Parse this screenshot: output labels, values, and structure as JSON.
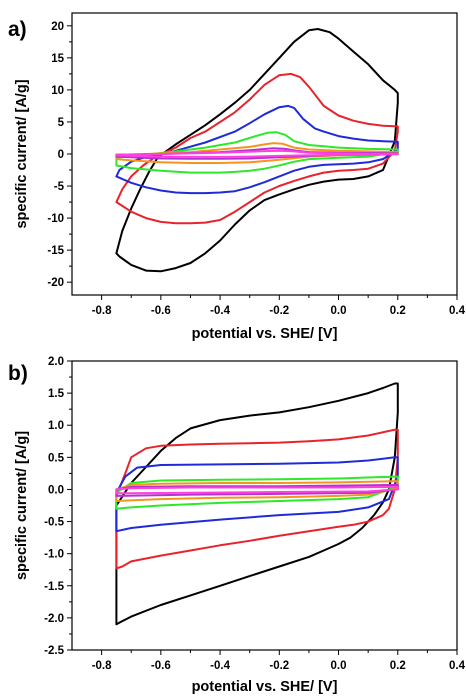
{
  "chart_data": [
    {
      "type": "line",
      "panel_label": "a)",
      "xlabel": "potential vs. SHE/ [V]",
      "ylabel": "specific current/ [A/g]",
      "xlim": [
        -0.9,
        0.4
      ],
      "ylim": [
        -22,
        22
      ],
      "xticks": [
        -0.8,
        -0.6,
        -0.4,
        -0.2,
        0.0,
        0.2,
        0.4
      ],
      "yticks": [
        -20,
        -15,
        -10,
        -5,
        0,
        5,
        10,
        15,
        20
      ],
      "xtick_labels": [
        "-0.8",
        "-0.6",
        "-0.4",
        "-0.2",
        "0.0",
        "0.2",
        "0.4"
      ],
      "ytick_labels": [
        "-20",
        "-15",
        "-10",
        "-5",
        "0",
        "5",
        "10",
        "15",
        "20"
      ],
      "grid": false,
      "series": [
        {
          "color": "#000000",
          "x": [
            -0.61,
            -0.55,
            -0.5,
            -0.45,
            -0.4,
            -0.35,
            -0.3,
            -0.25,
            -0.2,
            -0.15,
            -0.1,
            -0.07,
            -0.03,
            0.0,
            0.05,
            0.1,
            0.15,
            0.19,
            0.2,
            0.2,
            0.19,
            0.15,
            0.1,
            0.05,
            0.0,
            -0.05,
            -0.1,
            -0.15,
            -0.2,
            -0.25,
            -0.3,
            -0.35,
            -0.4,
            -0.45,
            -0.5,
            -0.55,
            -0.6,
            -0.65,
            -0.7,
            -0.74,
            -0.75,
            -0.73,
            -0.7,
            -0.67,
            -0.64,
            -0.61
          ],
          "y": [
            -0.5,
            1.5,
            3.0,
            4.5,
            6.2,
            8.0,
            10.0,
            12.5,
            15.0,
            17.5,
            19.3,
            19.5,
            19.0,
            18.0,
            16.0,
            14.0,
            11.5,
            10.0,
            9.5,
            8.0,
            2.0,
            -2.5,
            -3.5,
            -3.9,
            -4.0,
            -4.3,
            -4.8,
            -5.5,
            -6.3,
            -7.2,
            -8.8,
            -11.0,
            -13.5,
            -15.5,
            -17.0,
            -17.8,
            -18.3,
            -18.2,
            -17.3,
            -16.0,
            -15.5,
            -12.0,
            -8.5,
            -5.5,
            -2.8,
            -0.5
          ]
        },
        {
          "color": "#e8232d",
          "x": [
            -0.62,
            -0.55,
            -0.5,
            -0.45,
            -0.4,
            -0.35,
            -0.3,
            -0.25,
            -0.2,
            -0.16,
            -0.13,
            -0.1,
            -0.05,
            0.0,
            0.05,
            0.1,
            0.15,
            0.2,
            0.2,
            0.19,
            0.15,
            0.1,
            0.05,
            0.0,
            -0.05,
            -0.1,
            -0.15,
            -0.2,
            -0.25,
            -0.3,
            -0.35,
            -0.4,
            -0.45,
            -0.5,
            -0.55,
            -0.6,
            -0.65,
            -0.7,
            -0.74,
            -0.75,
            -0.73,
            -0.7,
            -0.66,
            -0.62
          ],
          "y": [
            -0.5,
            1.0,
            2.5,
            3.5,
            5.0,
            6.5,
            8.5,
            10.8,
            12.3,
            12.5,
            12.0,
            10.5,
            7.5,
            6.0,
            5.2,
            4.7,
            4.4,
            4.3,
            3.5,
            0.5,
            -1.5,
            -2.3,
            -2.5,
            -2.6,
            -2.9,
            -3.5,
            -4.2,
            -5.0,
            -6.0,
            -7.5,
            -9.0,
            -10.3,
            -10.7,
            -10.8,
            -10.8,
            -10.6,
            -10.0,
            -9.0,
            -7.8,
            -7.5,
            -5.5,
            -3.5,
            -1.8,
            -0.5
          ]
        },
        {
          "color": "#1f2bd6",
          "x": [
            -0.64,
            -0.55,
            -0.45,
            -0.35,
            -0.3,
            -0.25,
            -0.2,
            -0.17,
            -0.15,
            -0.12,
            -0.08,
            -0.05,
            0.0,
            0.05,
            0.1,
            0.15,
            0.2,
            0.2,
            0.15,
            0.1,
            0.05,
            0.0,
            -0.05,
            -0.1,
            -0.15,
            -0.2,
            -0.25,
            -0.3,
            -0.35,
            -0.4,
            -0.45,
            -0.5,
            -0.55,
            -0.6,
            -0.65,
            -0.7,
            -0.75,
            -0.74,
            -0.7,
            -0.64
          ],
          "y": [
            -0.3,
            0.5,
            1.8,
            3.5,
            4.8,
            6.2,
            7.3,
            7.5,
            7.2,
            5.5,
            4.0,
            3.5,
            2.8,
            2.4,
            2.1,
            2.0,
            1.9,
            0.7,
            -0.8,
            -1.3,
            -1.5,
            -1.6,
            -1.7,
            -2.0,
            -2.6,
            -3.5,
            -4.4,
            -5.2,
            -5.8,
            -6.0,
            -6.1,
            -6.1,
            -6.0,
            -5.7,
            -5.2,
            -4.5,
            -3.5,
            -2.5,
            -1.2,
            -0.3
          ]
        },
        {
          "color": "#2ee82a",
          "x": [
            -0.75,
            -0.65,
            -0.55,
            -0.45,
            -0.35,
            -0.28,
            -0.24,
            -0.21,
            -0.18,
            -0.15,
            -0.1,
            -0.05,
            0.0,
            0.1,
            0.2,
            0.2,
            0.1,
            0.0,
            -0.1,
            -0.15,
            -0.2,
            -0.25,
            -0.3,
            -0.35,
            -0.4,
            -0.5,
            -0.6,
            -0.7,
            -0.75,
            -0.75
          ],
          "y": [
            -0.6,
            -0.1,
            0.4,
            1.0,
            1.8,
            2.8,
            3.3,
            3.4,
            3.0,
            2.0,
            1.4,
            1.2,
            1.0,
            0.8,
            0.7,
            0.3,
            -0.4,
            -0.6,
            -0.8,
            -1.2,
            -1.8,
            -2.3,
            -2.6,
            -2.8,
            -2.9,
            -2.9,
            -2.6,
            -2.2,
            -1.8,
            -0.6
          ]
        },
        {
          "color": "#f5951f",
          "x": [
            -0.75,
            -0.6,
            -0.5,
            -0.4,
            -0.3,
            -0.25,
            -0.22,
            -0.19,
            -0.15,
            -0.1,
            0.0,
            0.1,
            0.2,
            0.2,
            0.1,
            0.0,
            -0.1,
            -0.2,
            -0.3,
            -0.4,
            -0.5,
            -0.6,
            -0.7,
            -0.75,
            -0.75
          ],
          "y": [
            -0.2,
            0.1,
            0.3,
            0.7,
            1.1,
            1.5,
            1.7,
            1.6,
            1.0,
            0.7,
            0.5,
            0.4,
            0.3,
            0.1,
            -0.1,
            -0.2,
            -0.4,
            -0.9,
            -1.3,
            -1.4,
            -1.4,
            -1.3,
            -1.0,
            -0.8,
            -0.2
          ]
        },
        {
          "color": "#b432d1",
          "x": [
            -0.75,
            -0.6,
            -0.4,
            -0.3,
            -0.22,
            -0.18,
            -0.14,
            -0.1,
            0.0,
            0.1,
            0.2,
            0.2,
            0.1,
            0.0,
            -0.1,
            -0.2,
            -0.3,
            -0.4,
            -0.5,
            -0.6,
            -0.7,
            -0.75,
            -0.75
          ],
          "y": [
            -0.1,
            0.0,
            0.3,
            0.6,
            0.9,
            0.8,
            0.5,
            0.3,
            0.2,
            0.15,
            0.1,
            0.0,
            -0.1,
            -0.15,
            -0.3,
            -0.5,
            -0.7,
            -0.75,
            -0.75,
            -0.7,
            -0.5,
            -0.4,
            -0.1
          ]
        },
        {
          "color": "#ff3fe0",
          "x": [
            -0.75,
            -0.6,
            -0.4,
            -0.25,
            -0.2,
            -0.15,
            -0.1,
            0.0,
            0.1,
            0.2,
            0.2,
            0.1,
            0.0,
            -0.1,
            -0.2,
            -0.3,
            -0.4,
            -0.5,
            -0.6,
            -0.7,
            -0.75,
            -0.75
          ],
          "y": [
            -0.1,
            0.0,
            0.2,
            0.45,
            0.5,
            0.4,
            0.2,
            0.1,
            0.05,
            0.0,
            -0.05,
            -0.1,
            -0.15,
            -0.2,
            -0.3,
            -0.4,
            -0.45,
            -0.45,
            -0.4,
            -0.3,
            -0.2,
            -0.1
          ]
        }
      ]
    },
    {
      "type": "line",
      "panel_label": "b)",
      "xlabel": "potential vs. SHE/ [V]",
      "ylabel": "specific current/ [A/g]",
      "xlim": [
        -0.9,
        0.4
      ],
      "ylim": [
        -2.5,
        2.0
      ],
      "xticks": [
        -0.8,
        -0.6,
        -0.4,
        -0.2,
        0.0,
        0.2,
        0.4
      ],
      "yticks": [
        -2.5,
        -2.0,
        -1.5,
        -1.0,
        -0.5,
        0.0,
        0.5,
        1.0,
        1.5,
        2.0
      ],
      "xtick_labels": [
        "-0.8",
        "-0.6",
        "-0.4",
        "-0.2",
        "0.0",
        "0.2",
        "0.4"
      ],
      "ytick_labels": [
        "-2.5",
        "-2.0",
        "-1.5",
        "-1.0",
        "-0.5",
        "0.0",
        "0.5",
        "1.0",
        "1.5",
        "2.0"
      ],
      "grid": false,
      "series": [
        {
          "color": "#000000",
          "x": [
            -0.75,
            -0.7,
            -0.65,
            -0.6,
            -0.55,
            -0.5,
            -0.4,
            -0.3,
            -0.2,
            -0.1,
            0.0,
            0.1,
            0.15,
            0.19,
            0.2,
            0.2,
            0.19,
            0.17,
            0.15,
            0.12,
            0.08,
            0.04,
            0.0,
            -0.05,
            -0.1,
            -0.2,
            -0.3,
            -0.4,
            -0.5,
            -0.6,
            -0.7,
            -0.73,
            -0.75,
            -0.75,
            -0.75
          ],
          "y": [
            -0.25,
            0.1,
            0.35,
            0.6,
            0.8,
            0.95,
            1.08,
            1.15,
            1.2,
            1.28,
            1.38,
            1.5,
            1.58,
            1.65,
            1.65,
            1.2,
            0.5,
            0.0,
            -0.2,
            -0.4,
            -0.6,
            -0.75,
            -0.85,
            -0.95,
            -1.05,
            -1.2,
            -1.35,
            -1.5,
            -1.65,
            -1.8,
            -1.98,
            -2.05,
            -2.1,
            -1.3,
            -0.25
          ]
        },
        {
          "color": "#e8232d",
          "x": [
            -0.75,
            -0.72,
            -0.7,
            -0.65,
            -0.6,
            -0.5,
            -0.4,
            -0.3,
            -0.2,
            -0.1,
            0.0,
            0.1,
            0.19,
            0.2,
            0.2,
            0.19,
            0.17,
            0.15,
            0.1,
            0.05,
            0.0,
            -0.1,
            -0.2,
            -0.3,
            -0.4,
            -0.5,
            -0.6,
            -0.7,
            -0.73,
            -0.75,
            -0.75
          ],
          "y": [
            -0.1,
            0.25,
            0.5,
            0.64,
            0.68,
            0.7,
            0.71,
            0.72,
            0.73,
            0.75,
            0.78,
            0.84,
            0.93,
            0.93,
            0.5,
            0.0,
            -0.3,
            -0.4,
            -0.5,
            -0.55,
            -0.58,
            -0.65,
            -0.72,
            -0.8,
            -0.87,
            -0.95,
            -1.03,
            -1.12,
            -1.2,
            -1.23,
            -0.1
          ]
        },
        {
          "color": "#1f2bd6",
          "x": [
            -0.75,
            -0.72,
            -0.68,
            -0.6,
            -0.4,
            -0.2,
            0.0,
            0.1,
            0.19,
            0.2,
            0.2,
            0.17,
            0.1,
            0.0,
            -0.2,
            -0.4,
            -0.6,
            -0.7,
            -0.75,
            -0.75
          ],
          "y": [
            -0.05,
            0.2,
            0.34,
            0.38,
            0.39,
            0.4,
            0.42,
            0.45,
            0.5,
            0.5,
            0.2,
            -0.15,
            -0.28,
            -0.35,
            -0.4,
            -0.47,
            -0.55,
            -0.6,
            -0.65,
            -0.05
          ]
        },
        {
          "color": "#2ee82a",
          "x": [
            -0.75,
            -0.7,
            -0.6,
            -0.4,
            -0.2,
            0.0,
            0.19,
            0.2,
            0.2,
            0.1,
            0.0,
            -0.2,
            -0.4,
            -0.6,
            -0.7,
            -0.75,
            -0.75
          ],
          "y": [
            -0.05,
            0.1,
            0.14,
            0.15,
            0.16,
            0.17,
            0.2,
            0.2,
            0.05,
            -0.12,
            -0.15,
            -0.18,
            -0.21,
            -0.25,
            -0.28,
            -0.3,
            -0.05
          ]
        },
        {
          "color": "#f5951f",
          "x": [
            -0.75,
            -0.7,
            -0.6,
            -0.4,
            -0.2,
            0.0,
            0.2,
            0.2,
            0.1,
            0.0,
            -0.2,
            -0.4,
            -0.6,
            -0.75,
            -0.75
          ],
          "y": [
            0.0,
            0.07,
            0.09,
            0.1,
            0.1,
            0.11,
            0.13,
            0.02,
            -0.08,
            -0.1,
            -0.12,
            -0.13,
            -0.15,
            -0.18,
            0.0
          ]
        },
        {
          "color": "#b432d1",
          "x": [
            -0.75,
            -0.7,
            -0.5,
            -0.2,
            0.0,
            0.2,
            0.2,
            0.1,
            -0.2,
            -0.5,
            -0.75,
            -0.75
          ],
          "y": [
            0.0,
            0.04,
            0.05,
            0.05,
            0.06,
            0.07,
            0.0,
            -0.05,
            -0.07,
            -0.08,
            -0.1,
            0.0
          ]
        },
        {
          "color": "#ff3fe0",
          "x": [
            -0.75,
            -0.7,
            -0.5,
            -0.2,
            0.0,
            0.2,
            0.2,
            0.1,
            -0.2,
            -0.5,
            -0.75,
            -0.75
          ],
          "y": [
            0.0,
            0.02,
            0.03,
            0.03,
            0.03,
            0.04,
            0.0,
            -0.03,
            -0.04,
            -0.05,
            -0.06,
            0.0
          ]
        }
      ]
    }
  ]
}
